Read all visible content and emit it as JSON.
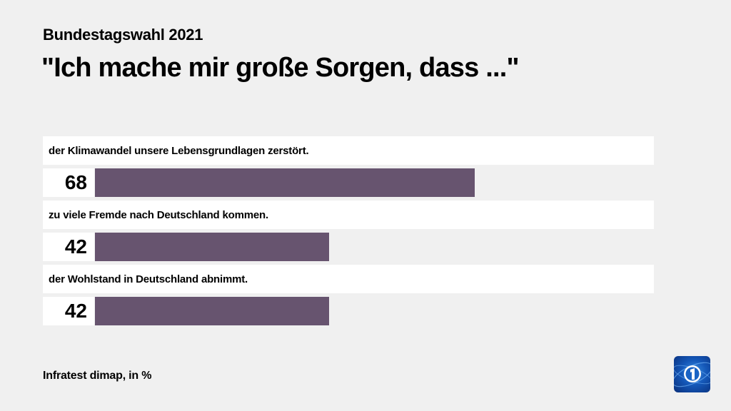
{
  "header": {
    "supertitle": "Bundestagswahl 2021",
    "title": "\"Ich mache mir große Sorgen, dass ...\""
  },
  "footer": {
    "source": "Infratest dimap, in %"
  },
  "logo": {
    "icon": "tagesschau-logo-icon"
  },
  "colors": {
    "bar": "#67546f",
    "background": "#f0f0f0",
    "strip": "#ffffff"
  },
  "rows": [
    {
      "label": "der Klimawandel unsere Lebensgrundlagen zerstört.",
      "value": "68"
    },
    {
      "label": "zu viele Fremde nach Deutschland kommen.",
      "value": "42"
    },
    {
      "label": "der Wohlstand in Deutschland abnimmt.",
      "value": "42"
    }
  ],
  "chart_data": {
    "type": "bar",
    "orientation": "horizontal",
    "title": "\"Ich mache mir große Sorgen, dass ...\"",
    "subtitle": "Bundestagswahl 2021",
    "categories": [
      "der Klimawandel unsere Lebensgrundlagen zerstört.",
      "zu viele Fremde nach Deutschland kommen.",
      "der Wohlstand in Deutschland abnimmt."
    ],
    "values": [
      68,
      42,
      42
    ],
    "unit": "%",
    "source": "Infratest dimap, in %",
    "xlabel": "",
    "ylabel": "",
    "xlim": [
      0,
      100
    ],
    "grid": false,
    "legend": null
  }
}
